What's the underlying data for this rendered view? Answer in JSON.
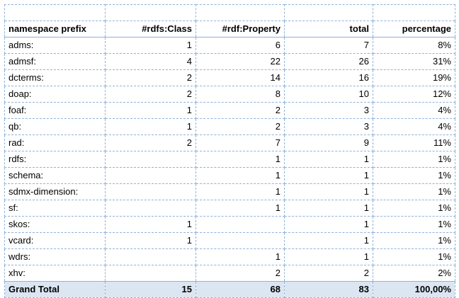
{
  "table": {
    "headers": [
      "namespace prefix",
      "#rdfs:Class",
      "#rdf:Property",
      "total",
      "percentage"
    ],
    "rows": [
      {
        "prefix": "adms:",
        "classes": "1",
        "properties": "6",
        "total": "7",
        "percentage": "8%"
      },
      {
        "prefix": "admsf:",
        "classes": "4",
        "properties": "22",
        "total": "26",
        "percentage": "31%"
      },
      {
        "prefix": "dcterms:",
        "classes": "2",
        "properties": "14",
        "total": "16",
        "percentage": "19%"
      },
      {
        "prefix": "doap:",
        "classes": "2",
        "properties": "8",
        "total": "10",
        "percentage": "12%"
      },
      {
        "prefix": "foaf:",
        "classes": "1",
        "properties": "2",
        "total": "3",
        "percentage": "4%"
      },
      {
        "prefix": "qb:",
        "classes": "1",
        "properties": "2",
        "total": "3",
        "percentage": "4%"
      },
      {
        "prefix": "rad:",
        "classes": "2",
        "properties": "7",
        "total": "9",
        "percentage": "11%"
      },
      {
        "prefix": "rdfs:",
        "classes": "",
        "properties": "1",
        "total": "1",
        "percentage": "1%"
      },
      {
        "prefix": "schema:",
        "classes": "",
        "properties": "1",
        "total": "1",
        "percentage": "1%"
      },
      {
        "prefix": "sdmx-dimension:",
        "classes": "",
        "properties": "1",
        "total": "1",
        "percentage": "1%"
      },
      {
        "prefix": "sf:",
        "classes": "",
        "properties": "1",
        "total": "1",
        "percentage": "1%"
      },
      {
        "prefix": "skos:",
        "classes": "1",
        "properties": "",
        "total": "1",
        "percentage": "1%"
      },
      {
        "prefix": "vcard:",
        "classes": "1",
        "properties": "",
        "total": "1",
        "percentage": "1%"
      },
      {
        "prefix": "wdrs:",
        "classes": "",
        "properties": "1",
        "total": "1",
        "percentage": "1%"
      },
      {
        "prefix": "xhv:",
        "classes": "",
        "properties": "2",
        "total": "2",
        "percentage": "2%"
      }
    ],
    "grand_total": {
      "label": "Grand Total",
      "classes": "15",
      "properties": "68",
      "total": "83",
      "percentage": "100,00%"
    }
  },
  "colors": {
    "grid": "#8fb3d9",
    "total_row_bg": "#dce6f2"
  }
}
